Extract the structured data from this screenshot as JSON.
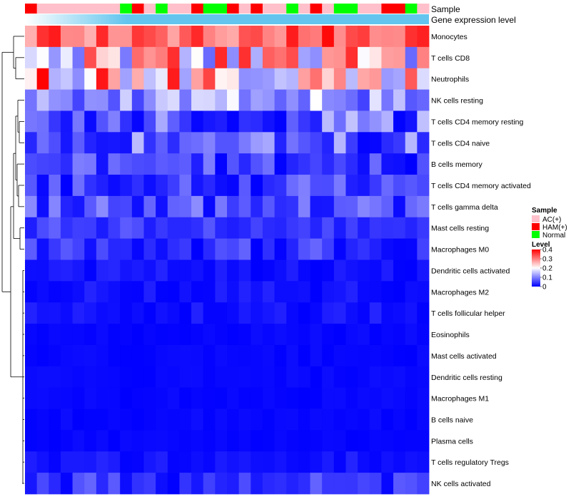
{
  "chart_data": {
    "type": "heatmap",
    "title": "",
    "n_samples": 34,
    "annotation_tracks": [
      {
        "label": "Sample",
        "values": [
          "HAM(+)",
          "AC(+)",
          "AC(+)",
          "AC(+)",
          "AC(+)",
          "AC(+)",
          "AC(+)",
          "AC(+)",
          "Normal",
          "HAM(+)",
          "AC(+)",
          "Normal",
          "AC(+)",
          "AC(+)",
          "HAM(+)",
          "Normal",
          "Normal",
          "HAM(+)",
          "AC(+)",
          "HAM(+)",
          "AC(+)",
          "AC(+)",
          "Normal",
          "AC(+)",
          "HAM(+)",
          "AC(+)",
          "Normal",
          "Normal",
          "AC(+)",
          "AC(+)",
          "HAM(+)",
          "HAM(+)",
          "Normal",
          "AC(+)"
        ]
      },
      {
        "label": "Gene expression level",
        "gradient": [
          "#ffffff",
          "#63c5ee"
        ]
      }
    ],
    "rows": [
      "Monocytes",
      "T cells CD8",
      "Neutrophils",
      "NK cells resting",
      "T cells CD4 memory resting",
      "T cells CD4 naive",
      "B cells memory",
      "T cells CD4 memory activated",
      "T cells gamma delta",
      "Mast cells resting",
      "Macrophages M0",
      "Dendritic cells activated",
      "Macrophages M2",
      "T cells follicular helper",
      "Eosinophils",
      "Mast cells activated",
      "Dendritic cells resting",
      "Macrophages M1",
      "B cells naive",
      "Plasma cells",
      "T cells regulatory  Tregs",
      "NK cells activated"
    ],
    "row_ranges": [
      [
        0.26,
        0.4
      ],
      [
        0.07,
        0.4
      ],
      [
        0.1,
        0.4
      ],
      [
        0.05,
        0.2
      ],
      [
        0.0,
        0.16
      ],
      [
        0.0,
        0.15
      ],
      [
        0.0,
        0.1
      ],
      [
        0.0,
        0.1
      ],
      [
        0.0,
        0.12
      ],
      [
        0.02,
        0.08
      ],
      [
        0.0,
        0.08
      ],
      [
        0.0,
        0.03
      ],
      [
        0.0,
        0.03
      ],
      [
        0.0,
        0.03
      ],
      [
        0.0,
        0.01
      ],
      [
        0.0,
        0.01
      ],
      [
        0.0,
        0.01
      ],
      [
        0.0,
        0.01
      ],
      [
        0.0,
        0.01
      ],
      [
        0.0,
        0.01
      ],
      [
        0.0,
        0.03
      ],
      [
        0.0,
        0.08
      ]
    ],
    "color_scale": {
      "title": "Level",
      "min": 0,
      "max": 0.4,
      "ticks": [
        "0.4",
        "0.3",
        "0.2",
        "0.1",
        "0"
      ],
      "colors": [
        "#0000ff",
        "#ffffff",
        "#ff0000"
      ]
    },
    "legend": {
      "title": "Sample",
      "position": "right",
      "items": [
        {
          "label": "AC(+)",
          "color": "#ffc0cb"
        },
        {
          "label": "HAM(+)",
          "color": "#ff0000"
        },
        {
          "label": "Normal",
          "color": "#00ff00"
        }
      ]
    },
    "dendrogram": "rows"
  }
}
